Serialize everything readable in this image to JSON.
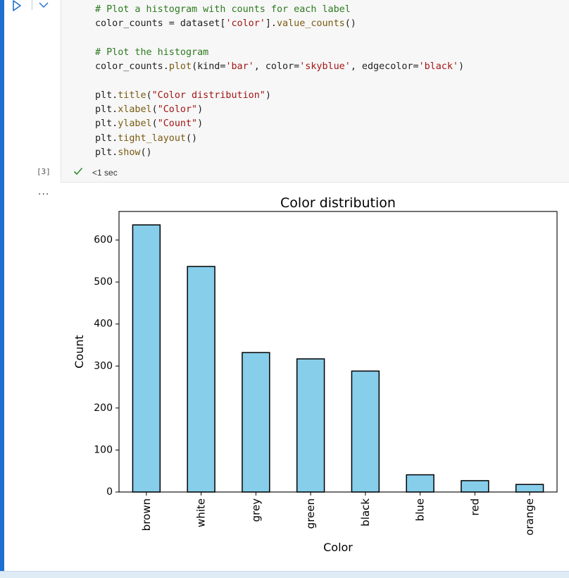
{
  "cell": {
    "execution_count": "[3]",
    "exec_time": "<1 sec",
    "output_menu": "...",
    "code_lines": [
      [
        {
          "t": "# Plot a histogram with counts for each label",
          "c": "cm"
        }
      ],
      [
        {
          "t": "color_counts = dataset[",
          "c": ""
        },
        {
          "t": "'color'",
          "c": "st"
        },
        {
          "t": "].",
          "c": ""
        },
        {
          "t": "value_counts",
          "c": "fn"
        },
        {
          "t": "()",
          "c": ""
        }
      ],
      [
        {
          "t": "",
          "c": ""
        }
      ],
      [
        {
          "t": "# Plot the histogram",
          "c": "cm"
        }
      ],
      [
        {
          "t": "color_counts.",
          "c": ""
        },
        {
          "t": "plot",
          "c": "fn"
        },
        {
          "t": "(kind=",
          "c": ""
        },
        {
          "t": "'bar'",
          "c": "st"
        },
        {
          "t": ", color=",
          "c": ""
        },
        {
          "t": "'skyblue'",
          "c": "st"
        },
        {
          "t": ", edgecolor=",
          "c": ""
        },
        {
          "t": "'black'",
          "c": "st"
        },
        {
          "t": ")",
          "c": ""
        }
      ],
      [
        {
          "t": "",
          "c": ""
        }
      ],
      [
        {
          "t": "plt.",
          "c": ""
        },
        {
          "t": "title",
          "c": "fn"
        },
        {
          "t": "(",
          "c": ""
        },
        {
          "t": "\"Color distribution\"",
          "c": "st"
        },
        {
          "t": ")",
          "c": ""
        }
      ],
      [
        {
          "t": "plt.",
          "c": ""
        },
        {
          "t": "xlabel",
          "c": "fn"
        },
        {
          "t": "(",
          "c": ""
        },
        {
          "t": "\"Color\"",
          "c": "st"
        },
        {
          "t": ")",
          "c": ""
        }
      ],
      [
        {
          "t": "plt.",
          "c": ""
        },
        {
          "t": "ylabel",
          "c": "fn"
        },
        {
          "t": "(",
          "c": ""
        },
        {
          "t": "\"Count\"",
          "c": "st"
        },
        {
          "t": ")",
          "c": ""
        }
      ],
      [
        {
          "t": "plt.",
          "c": ""
        },
        {
          "t": "tight_layout",
          "c": "fn"
        },
        {
          "t": "()",
          "c": ""
        }
      ],
      [
        {
          "t": "plt.",
          "c": ""
        },
        {
          "t": "show",
          "c": "fn"
        },
        {
          "t": "()",
          "c": ""
        }
      ]
    ]
  },
  "colors": {
    "accent": "#1e6fd0",
    "bar_fill": "#87ceeb",
    "bar_edge": "#000000",
    "success": "#2e8b2e"
  },
  "icons": {
    "run": "run-triangle-icon",
    "menu": "chevron-down-icon",
    "status": "check-icon"
  },
  "chart_data": {
    "type": "bar",
    "title": "Color distribution",
    "xlabel": "Color",
    "ylabel": "Count",
    "categories": [
      "brown",
      "white",
      "grey",
      "green",
      "black",
      "blue",
      "red",
      "orange"
    ],
    "values": [
      636,
      537,
      332,
      317,
      288,
      41,
      27,
      18
    ],
    "ylim": [
      0,
      668
    ],
    "yticks": [
      0,
      100,
      200,
      300,
      400,
      500,
      600
    ],
    "grid": false,
    "legend": "none"
  }
}
